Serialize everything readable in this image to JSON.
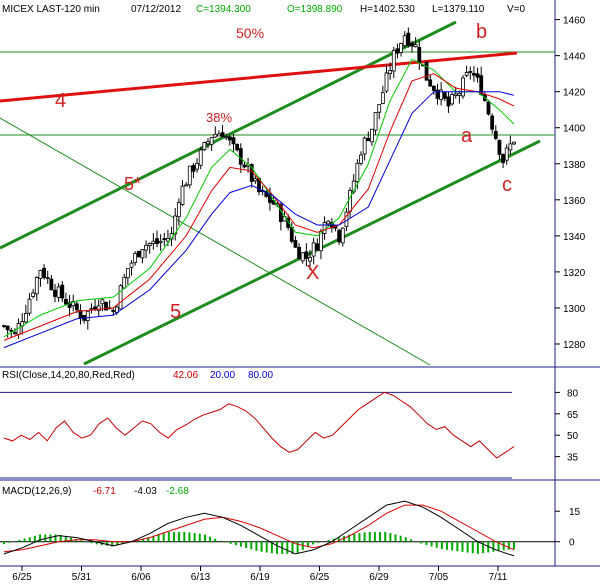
{
  "header": {
    "symbol": "MICEX LAST-120 min",
    "date": "07/12/2012",
    "close": "C=1394.300",
    "open": "O=1398.890",
    "high": "H=1402.530",
    "low": "L=1379.110",
    "volume": "V=0"
  },
  "colors": {
    "grid": "#1d1d8f",
    "channel": "#1e8c1e",
    "redline": "#e01010",
    "candle_up": "#ffffff",
    "candle_down": "#000000",
    "ma_green": "#00cc00",
    "ma_red": "#e00000",
    "ma_blue": "#0000dd",
    "rsi_line": "#cc0000",
    "macd_line": "#000000",
    "signal_line": "#dd0000",
    "hist": "#00aa00"
  },
  "annotations": {
    "fib50": "50%",
    "fib38": "38%",
    "w4": "4",
    "w5star": "5*",
    "w5": "5",
    "wX": "X",
    "wa": "a",
    "wb": "b",
    "wc": "c"
  },
  "chart_data": [
    {
      "type": "candlestick",
      "title": "MICEX LAST-120 min",
      "x_labels": [
        "6/25",
        "5/31",
        "6/06",
        "6/13",
        "6/19",
        "6/25",
        "6/29",
        "7/05",
        "7/11"
      ],
      "ylim": [
        1270,
        1462
      ],
      "y_ticks": [
        1280,
        1300,
        1320,
        1340,
        1360,
        1380,
        1400,
        1420,
        1440,
        1460
      ],
      "horizontal_levels": [
        1442,
        1396
      ],
      "close_path": [
        [
          0,
          1290
        ],
        [
          3,
          1285
        ],
        [
          6,
          1300
        ],
        [
          10,
          1322
        ],
        [
          14,
          1310
        ],
        [
          18,
          1302
        ],
        [
          22,
          1295
        ],
        [
          26,
          1305
        ],
        [
          30,
          1298
        ],
        [
          34,
          1322
        ],
        [
          38,
          1335
        ],
        [
          42,
          1336
        ],
        [
          46,
          1340
        ],
        [
          48,
          1362
        ],
        [
          51,
          1375
        ],
        [
          54,
          1385
        ],
        [
          57,
          1396
        ],
        [
          60,
          1398
        ],
        [
          63,
          1388
        ],
        [
          66,
          1380
        ],
        [
          70,
          1364
        ],
        [
          74,
          1358
        ],
        [
          78,
          1345
        ],
        [
          80,
          1333
        ],
        [
          83,
          1328
        ],
        [
          86,
          1336
        ],
        [
          89,
          1352
        ],
        [
          92,
          1340
        ],
        [
          95,
          1362
        ],
        [
          98,
          1388
        ],
        [
          101,
          1400
        ],
        [
          104,
          1420
        ],
        [
          107,
          1440
        ],
        [
          110,
          1452
        ],
        [
          113,
          1445
        ],
        [
          116,
          1428
        ],
        [
          119,
          1420
        ],
        [
          122,
          1412
        ],
        [
          125,
          1420
        ],
        [
          128,
          1432
        ],
        [
          131,
          1422
        ],
        [
          134,
          1402
        ],
        [
          137,
          1382
        ],
        [
          140,
          1394
        ]
      ],
      "moving_averages": [
        {
          "color": "green",
          "points": [
            [
              0,
              1284
            ],
            [
              10,
              1296
            ],
            [
              20,
              1304
            ],
            [
              30,
              1306
            ],
            [
              40,
              1322
            ],
            [
              50,
              1350
            ],
            [
              57,
              1378
            ],
            [
              62,
              1388
            ],
            [
              68,
              1378
            ],
            [
              74,
              1360
            ],
            [
              80,
              1342
            ],
            [
              86,
              1340
            ],
            [
              92,
              1350
            ],
            [
              100,
              1380
            ],
            [
              106,
              1415
            ],
            [
              112,
              1438
            ],
            [
              118,
              1432
            ],
            [
              124,
              1420
            ],
            [
              130,
              1420
            ],
            [
              136,
              1410
            ],
            [
              140,
              1402
            ]
          ]
        },
        {
          "color": "red",
          "points": [
            [
              0,
              1282
            ],
            [
              10,
              1290
            ],
            [
              20,
              1298
            ],
            [
              30,
              1300
            ],
            [
              40,
              1316
            ],
            [
              50,
              1340
            ],
            [
              57,
              1365
            ],
            [
              62,
              1378
            ],
            [
              68,
              1376
            ],
            [
              74,
              1362
            ],
            [
              80,
              1346
            ],
            [
              86,
              1342
            ],
            [
              92,
              1346
            ],
            [
              100,
              1366
            ],
            [
              106,
              1398
            ],
            [
              112,
              1426
            ],
            [
              118,
              1430
            ],
            [
              124,
              1422
            ],
            [
              130,
              1420
            ],
            [
              136,
              1416
            ],
            [
              140,
              1412
            ]
          ]
        },
        {
          "color": "blue",
          "points": [
            [
              0,
              1278
            ],
            [
              10,
              1286
            ],
            [
              20,
              1294
            ],
            [
              30,
              1296
            ],
            [
              40,
              1310
            ],
            [
              50,
              1332
            ],
            [
              57,
              1352
            ],
            [
              62,
              1364
            ],
            [
              68,
              1368
            ],
            [
              74,
              1362
            ],
            [
              80,
              1352
            ],
            [
              86,
              1346
            ],
            [
              92,
              1346
            ],
            [
              100,
              1356
            ],
            [
              106,
              1382
            ],
            [
              112,
              1408
            ],
            [
              118,
              1420
            ],
            [
              124,
              1420
            ],
            [
              130,
              1420
            ],
            [
              136,
              1420
            ],
            [
              140,
              1418
            ]
          ]
        }
      ]
    },
    {
      "type": "line",
      "title": "RSI(Close,14,20,80,Red,Red)",
      "values_text": {
        "last": "42.06",
        "low": "20.00",
        "high": "80.00"
      },
      "ylim": [
        20,
        88
      ],
      "y_ticks": [
        35,
        50,
        65,
        80
      ],
      "levels": [
        80,
        20
      ],
      "series": [
        {
          "values": [
            48,
            46,
            50,
            47,
            52,
            46,
            55,
            60,
            52,
            48,
            50,
            58,
            62,
            55,
            50,
            55,
            60,
            58,
            52,
            48,
            54,
            57,
            61,
            64,
            66,
            68,
            72,
            70,
            67,
            62,
            55,
            48,
            42,
            38,
            40,
            46,
            52,
            48,
            50,
            56,
            62,
            68,
            72,
            76,
            80,
            78,
            74,
            70,
            64,
            58,
            54,
            56,
            50,
            46,
            42,
            46,
            40,
            34,
            38,
            42
          ]
        }
      ]
    },
    {
      "type": "line",
      "title": "MACD(12,26,9)",
      "values_text": {
        "macd": "-6.71",
        "signal": "-4.03",
        "hist": "-2.68"
      },
      "ylim": [
        -10,
        22
      ],
      "y_ticks": [
        0,
        15
      ],
      "series": [
        {
          "values": [
            -6,
            -3,
            1,
            3,
            2,
            0,
            -2,
            0,
            4,
            9,
            12,
            14,
            12,
            8,
            3,
            -2,
            -6,
            -4,
            0,
            6,
            12,
            18,
            20,
            17,
            12,
            6,
            0,
            -4,
            -7
          ]
        },
        {
          "values": [
            -5,
            -4,
            -2,
            0,
            1,
            1,
            0,
            0,
            2,
            5,
            8,
            11,
            12,
            10,
            7,
            3,
            -1,
            -3,
            -1,
            3,
            8,
            14,
            18,
            18,
            15,
            10,
            5,
            0,
            -4
          ]
        }
      ]
    }
  ]
}
